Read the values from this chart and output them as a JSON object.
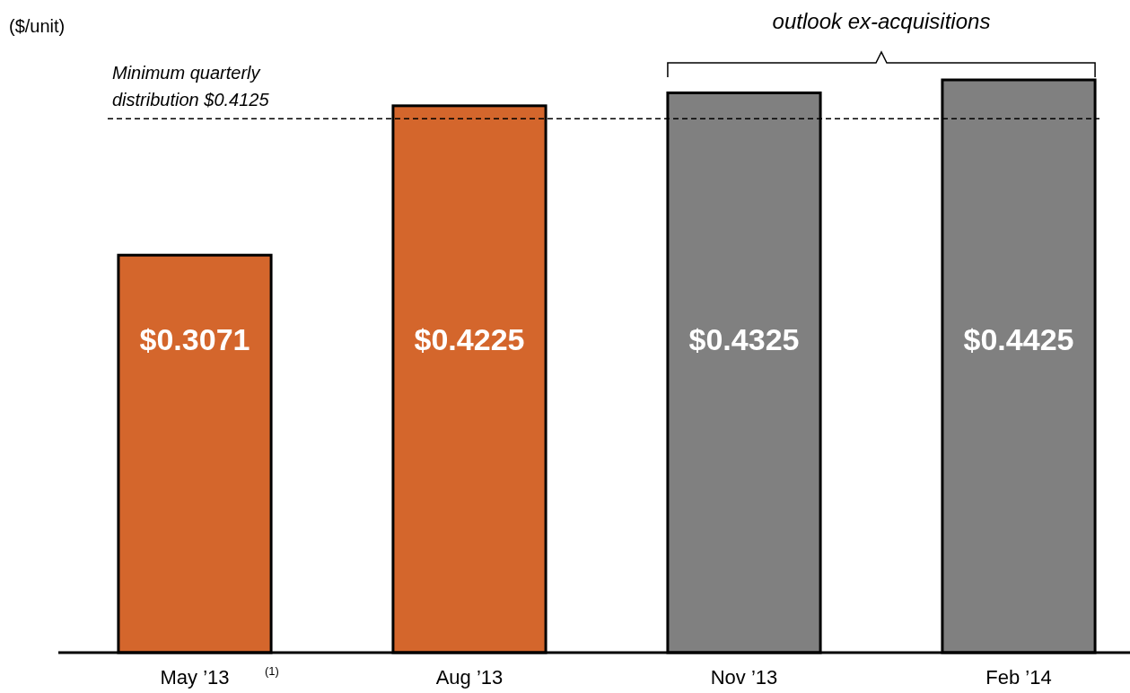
{
  "chart_data": {
    "type": "bar",
    "ylabel": "($/unit)",
    "categories": [
      "May ’13",
      "Aug ’13",
      "Nov ’13",
      "Feb ’14"
    ],
    "values": [
      0.3071,
      0.4225,
      0.4325,
      0.4425
    ],
    "colors": [
      "#d4662c",
      "#d4662c",
      "#808080",
      "#808080"
    ],
    "value_labels": [
      "$0.3071",
      "$0.4225",
      "$0.4325",
      "$0.4425"
    ],
    "tick_labels": "x",
    "ref_lines": [
      {
        "axis": "y",
        "value": 0.4125,
        "label": "Minimum quarterly distribution $0.4125",
        "line_style": "dashed",
        "color": "#000000"
      }
    ],
    "annotations": [
      "outlook ex-acquisitions",
      "(1)"
    ]
  }
}
